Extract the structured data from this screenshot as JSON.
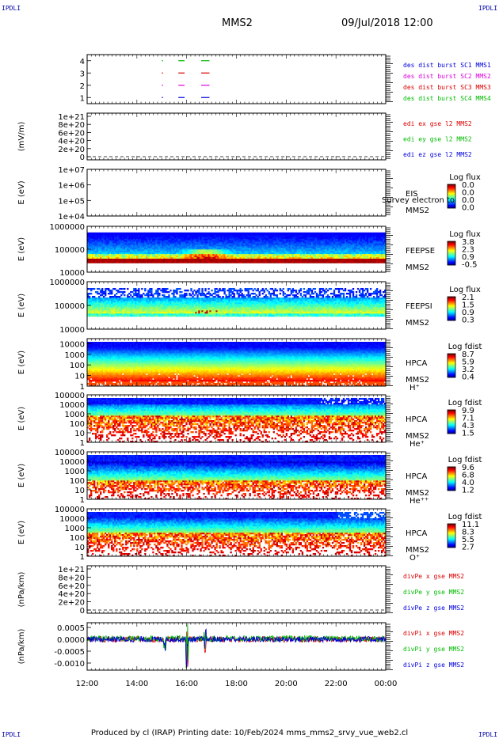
{
  "header": {
    "corner_tl": "IPDLI",
    "corner_tr": "IPDLI",
    "corner_bl": "IPDLI",
    "corner_br": "IPDLI",
    "spacecraft": "MMS2",
    "datetime": "09/Jul/2018 12:00"
  },
  "footer": {
    "text": "Produced by cl (IRAP)   Printing date: 10/Feb/2024   mms_mms2_srvy_vue_web2.cl"
  },
  "colors": {
    "blue": "#0000dd",
    "magenta": "#dd00dd",
    "red": "#dd0000",
    "green": "#00bb00"
  },
  "chart_data": [
    {
      "type": "line",
      "id": "burst",
      "ylabel": "",
      "yticks": [
        "1",
        "2",
        "3",
        "4"
      ],
      "ylim": [
        0.5,
        4.5
      ],
      "xlim": [
        "12:00",
        "00:00"
      ],
      "legend": [
        {
          "text": "des dist burst SC1 MMS1",
          "color": "#0000dd"
        },
        {
          "text": "des dist burst SC2 MMS2",
          "color": "#dd00dd"
        },
        {
          "text": "des dist burst SC3 MMS3",
          "color": "#dd0000"
        },
        {
          "text": "des dist burst SC4 MMS4",
          "color": "#00bb00"
        }
      ],
      "series": [
        {
          "level": 1,
          "color": "#0000dd",
          "intervals": [
            [
              "15:00",
              "15:03"
            ],
            [
              "15:40",
              "15:55"
            ],
            [
              "16:35",
              "16:55"
            ]
          ]
        },
        {
          "level": 2,
          "color": "#dd00dd",
          "intervals": [
            [
              "15:00",
              "15:03"
            ],
            [
              "15:40",
              "15:55"
            ],
            [
              "16:35",
              "16:55"
            ]
          ]
        },
        {
          "level": 3,
          "color": "#dd0000",
          "intervals": [
            [
              "15:00",
              "15:03"
            ],
            [
              "15:40",
              "15:55"
            ],
            [
              "16:35",
              "16:55"
            ]
          ]
        },
        {
          "level": 4,
          "color": "#00bb00",
          "intervals": [
            [
              "15:00",
              "15:03"
            ],
            [
              "15:40",
              "15:55"
            ],
            [
              "16:35",
              "16:55"
            ]
          ]
        }
      ]
    },
    {
      "type": "line",
      "id": "edi",
      "ylabel": "(mV/m)",
      "yticks": [
        "0",
        "2e+20",
        "4e+20",
        "6e+20",
        "8e+20",
        "1e+21"
      ],
      "ylim": [
        0,
        1e+21
      ],
      "zero_line": true,
      "legend": [
        {
          "text": "edi ex gse l2 MMS2",
          "color": "#dd0000"
        },
        {
          "text": "edi ey gse l2 MMS2",
          "color": "#00bb00"
        },
        {
          "text": "edi ez gse l2 MMS2",
          "color": "#0000dd"
        }
      ]
    },
    {
      "type": "heatmap",
      "id": "eis",
      "ylabel": "E (eV)",
      "yscale": "log",
      "yticks": [
        "1e+04",
        "1e+05",
        "1e+06",
        "1e+07"
      ],
      "ylim": [
        10000.0,
        10000000.0
      ],
      "instrument": "EIS",
      "overlay_label": "Survey electron to",
      "sc_label": "MMS2",
      "colorbar_title": "Log flux",
      "colorbar_ticks": [
        "0.0",
        "0.0",
        "0.0",
        "0.0"
      ],
      "fill": "empty"
    },
    {
      "type": "heatmap",
      "id": "feeps_e",
      "ylabel": "E (eV)",
      "yscale": "log",
      "yticks": [
        "10000",
        "100000",
        "1000000"
      ],
      "ylim": [
        10000.0,
        1000000.0
      ],
      "instrument": "FEEPSE",
      "sc_label": "MMS2",
      "colorbar_title": "Log flux",
      "colorbar_ticks": [
        "3.8",
        "2.3",
        "0.9",
        "-0.5"
      ],
      "fill": "feepse"
    },
    {
      "type": "heatmap",
      "id": "feeps_i",
      "ylabel": "E (eV)",
      "yscale": "log",
      "yticks": [
        "10000",
        "100000",
        "1000000"
      ],
      "ylim": [
        10000.0,
        1000000.0
      ],
      "instrument": "FEEPSI",
      "sc_label": "MMS2",
      "colorbar_title": "Log flux",
      "colorbar_ticks": [
        "2.1",
        "1.5",
        "0.9",
        "0.3"
      ],
      "fill": "feepsi"
    },
    {
      "type": "heatmap",
      "id": "hpca_h",
      "ylabel": "E (eV)",
      "yscale": "log",
      "yticks": [
        "1",
        "10",
        "100",
        "1000",
        "10000"
      ],
      "ylim": [
        1,
        30000
      ],
      "instrument": "HPCA",
      "sc_label": "MMS2",
      "species": "H⁺",
      "colorbar_title": "Log fdist",
      "colorbar_ticks": [
        "8.7",
        "5.9",
        "3.2",
        "0.4"
      ],
      "fill": "hpca_h"
    },
    {
      "type": "heatmap",
      "id": "hpca_he",
      "ylabel": "E (eV)",
      "yscale": "log",
      "yticks": [
        "1",
        "10",
        "100",
        "1000",
        "10000",
        "100000"
      ],
      "ylim": [
        1,
        100000
      ],
      "instrument": "HPCA",
      "sc_label": "MMS2",
      "species": "He⁺",
      "colorbar_title": "Log fdist",
      "colorbar_ticks": [
        "9.9",
        "7.1",
        "4.3",
        "1.5"
      ],
      "fill": "hpca_he"
    },
    {
      "type": "heatmap",
      "id": "hpca_he2",
      "ylabel": "E (eV)",
      "yscale": "log",
      "yticks": [
        "1",
        "10",
        "100",
        "1000",
        "10000",
        "100000"
      ],
      "ylim": [
        1,
        100000
      ],
      "instrument": "HPCA",
      "sc_label": "MMS2",
      "species": "He⁺⁺",
      "colorbar_title": "Log fdist",
      "colorbar_ticks": [
        "9.6",
        "6.8",
        "4.0",
        "1.2"
      ],
      "fill": "hpca_he2"
    },
    {
      "type": "heatmap",
      "id": "hpca_o",
      "ylabel": "E (eV)",
      "yscale": "log",
      "yticks": [
        "1",
        "10",
        "100",
        "1000",
        "10000",
        "100000"
      ],
      "ylim": [
        1,
        100000
      ],
      "instrument": "HPCA",
      "sc_label": "MMS2",
      "species": "O⁺",
      "colorbar_title": "Log fdist",
      "colorbar_ticks": [
        "11.1",
        "8.3",
        "5.5",
        "2.7"
      ],
      "fill": "hpca_o"
    },
    {
      "type": "line",
      "id": "divpe",
      "ylabel": "(nPa/km)",
      "yticks": [
        "0",
        "2e+20",
        "4e+20",
        "6e+20",
        "8e+20",
        "1e+21"
      ],
      "ylim": [
        0,
        1e+21
      ],
      "zero_line": true,
      "legend": [
        {
          "text": "divPe x gse MMS2",
          "color": "#dd0000"
        },
        {
          "text": "divPe y gse MMS2",
          "color": "#00bb00"
        },
        {
          "text": "divPe z gse MMS2",
          "color": "#0000dd"
        }
      ]
    },
    {
      "type": "line",
      "id": "divpi",
      "ylabel": "(nPa/km)",
      "yticks": [
        "-0.0010",
        "-0.0005",
        "0.0000",
        "0.0005"
      ],
      "ylim": [
        -0.0013,
        0.0007
      ],
      "legend": [
        {
          "text": "divPi x gse MMS2",
          "color": "#dd0000"
        },
        {
          "text": "divPi y gse MMS2",
          "color": "#00bb00"
        },
        {
          "text": "divPi z gse MMS2",
          "color": "#0000dd"
        }
      ],
      "series": [
        {
          "name": "x",
          "color": "#dd0000"
        },
        {
          "name": "y",
          "color": "#00bb00"
        },
        {
          "name": "z",
          "color": "#0000dd"
        }
      ]
    }
  ],
  "xaxis": {
    "ticks": [
      "12:00",
      "14:00",
      "16:00",
      "18:00",
      "20:00",
      "22:00",
      "00:00"
    ]
  }
}
